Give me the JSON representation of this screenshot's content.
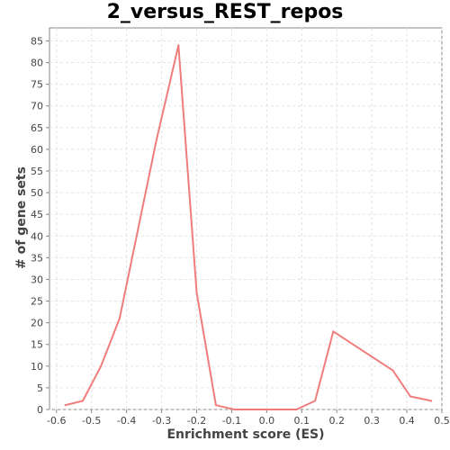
{
  "chart_data": {
    "type": "line",
    "title": "2_versus_REST_repos",
    "xlabel": "Enrichment score (ES)",
    "ylabel": "# of gene sets",
    "xlim": [
      -0.62,
      0.5
    ],
    "ylim": [
      0,
      88
    ],
    "x_ticks": [
      "-0.6",
      "-0.5",
      "-0.4",
      "-0.3",
      "-0.2",
      "-0.1",
      "0.0",
      "0.1",
      "0.2",
      "0.3",
      "0.4",
      "0.5"
    ],
    "y_ticks": [
      "0",
      "5",
      "10",
      "15",
      "20",
      "25",
      "30",
      "35",
      "40",
      "45",
      "50",
      "55",
      "60",
      "65",
      "70",
      "75",
      "80",
      "85"
    ],
    "grid": true,
    "series": [
      {
        "color": "#f07c7c",
        "x": [
          -0.575,
          -0.525,
          -0.473,
          -0.42,
          -0.315,
          -0.252,
          -0.2,
          -0.145,
          -0.092,
          0.0,
          0.085,
          0.138,
          0.19,
          0.36,
          0.41,
          0.47
        ],
        "y": [
          1,
          2,
          10,
          21,
          62,
          84,
          27,
          1,
          0,
          0,
          0,
          2,
          18,
          9,
          3,
          2
        ]
      }
    ]
  }
}
